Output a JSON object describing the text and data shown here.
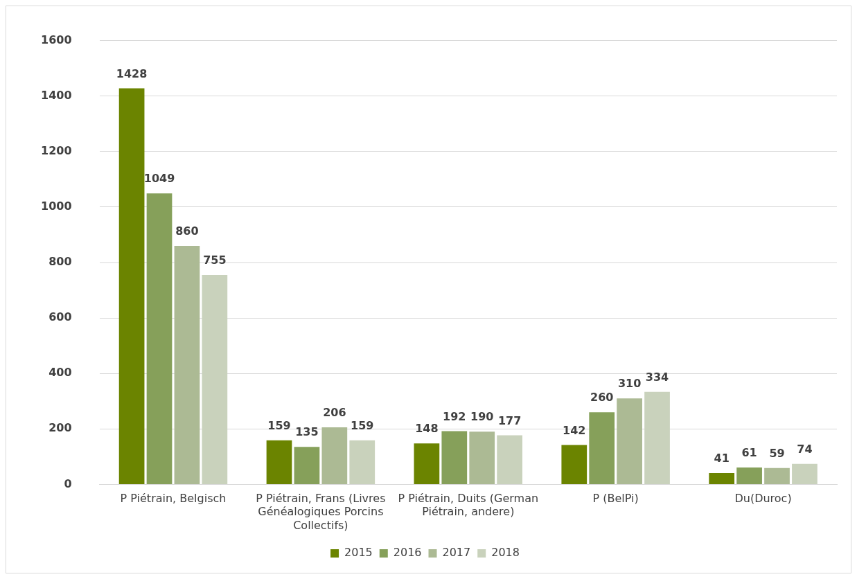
{
  "chart_data": {
    "type": "bar",
    "categories": [
      "P Piétrain, Belgisch",
      "P Piétrain, Frans (Livres Généalogiques Porcins Collectifs)",
      "P Piétrain, Duits (German Piétrain, andere)",
      "P (BelPi)",
      "Du(Duroc)"
    ],
    "series": [
      {
        "name": "2015",
        "color": "#6b8400",
        "values": [
          1428,
          159,
          148,
          142,
          41
        ]
      },
      {
        "name": "2016",
        "color": "#86a05a",
        "values": [
          1049,
          135,
          192,
          260,
          61
        ]
      },
      {
        "name": "2017",
        "color": "#acba94",
        "values": [
          860,
          206,
          190,
          310,
          59
        ]
      },
      {
        "name": "2018",
        "color": "#c9d2bc",
        "values": [
          755,
          159,
          177,
          334,
          74
        ]
      }
    ],
    "ylim": [
      0,
      1600
    ],
    "yticks": [
      0,
      200,
      400,
      600,
      800,
      1000,
      1200,
      1400,
      1600
    ],
    "grid": "y",
    "legend": "bottom",
    "data_labels": true
  }
}
